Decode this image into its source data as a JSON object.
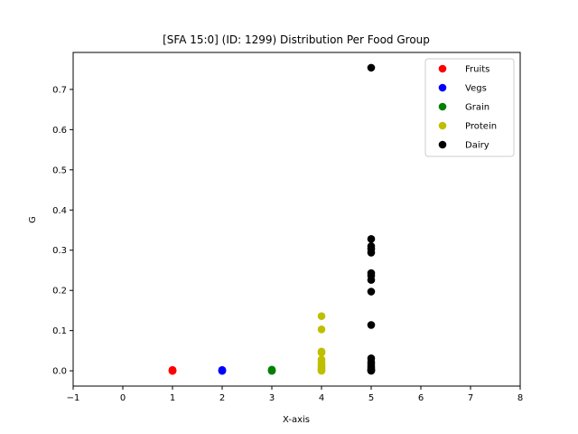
{
  "chart_data": {
    "type": "scatter",
    "title": "[SFA 15:0] (ID: 1299) Distribution Per Food Group",
    "xlabel": "X-axis",
    "ylabel": "G",
    "xlim": [
      -1,
      8
    ],
    "ylim": [
      -0.038,
      0.792
    ],
    "xticks": [
      -1,
      0,
      1,
      2,
      3,
      4,
      5,
      6,
      7,
      8
    ],
    "yticks": [
      0.0,
      0.1,
      0.2,
      0.3,
      0.4,
      0.5,
      0.6,
      0.7
    ],
    "xtick_labels": [
      "−1",
      "0",
      "1",
      "2",
      "3",
      "4",
      "5",
      "6",
      "7",
      "8"
    ],
    "ytick_labels": [
      "0.0",
      "0.1",
      "0.2",
      "0.3",
      "0.4",
      "0.5",
      "0.6",
      "0.7"
    ],
    "grid": false,
    "legend_position": "top-right",
    "series": [
      {
        "name": "Fruits",
        "color": "#ff0000",
        "x": [
          1,
          1,
          1,
          1,
          1
        ],
        "y": [
          0.0,
          0.0,
          0.0,
          0.001,
          0.002
        ]
      },
      {
        "name": "Vegs",
        "color": "#0000ff",
        "x": [
          2,
          2,
          2,
          2
        ],
        "y": [
          0.0,
          0.0,
          0.001,
          0.002
        ]
      },
      {
        "name": "Grain",
        "color": "#008000",
        "x": [
          3,
          3,
          3,
          3
        ],
        "y": [
          0.0,
          0.0,
          0.001,
          0.003
        ]
      },
      {
        "name": "Protein",
        "color": "#bfbf00",
        "x": [
          4,
          4,
          4,
          4,
          4,
          4,
          4,
          4,
          4,
          4,
          4,
          4
        ],
        "y": [
          0.136,
          0.103,
          0.048,
          0.045,
          0.028,
          0.022,
          0.015,
          0.01,
          0.006,
          0.003,
          0.001,
          0.0
        ]
      },
      {
        "name": "Dairy",
        "color": "#000000",
        "x": [
          5,
          5,
          5,
          5,
          5,
          5,
          5,
          5,
          5,
          5,
          5,
          5,
          5,
          5,
          5,
          5,
          5,
          5
        ],
        "y": [
          0.754,
          0.328,
          0.31,
          0.303,
          0.294,
          0.243,
          0.237,
          0.226,
          0.197,
          0.114,
          0.031,
          0.022,
          0.016,
          0.01,
          0.005,
          0.002,
          0.001,
          0.0
        ]
      }
    ]
  }
}
